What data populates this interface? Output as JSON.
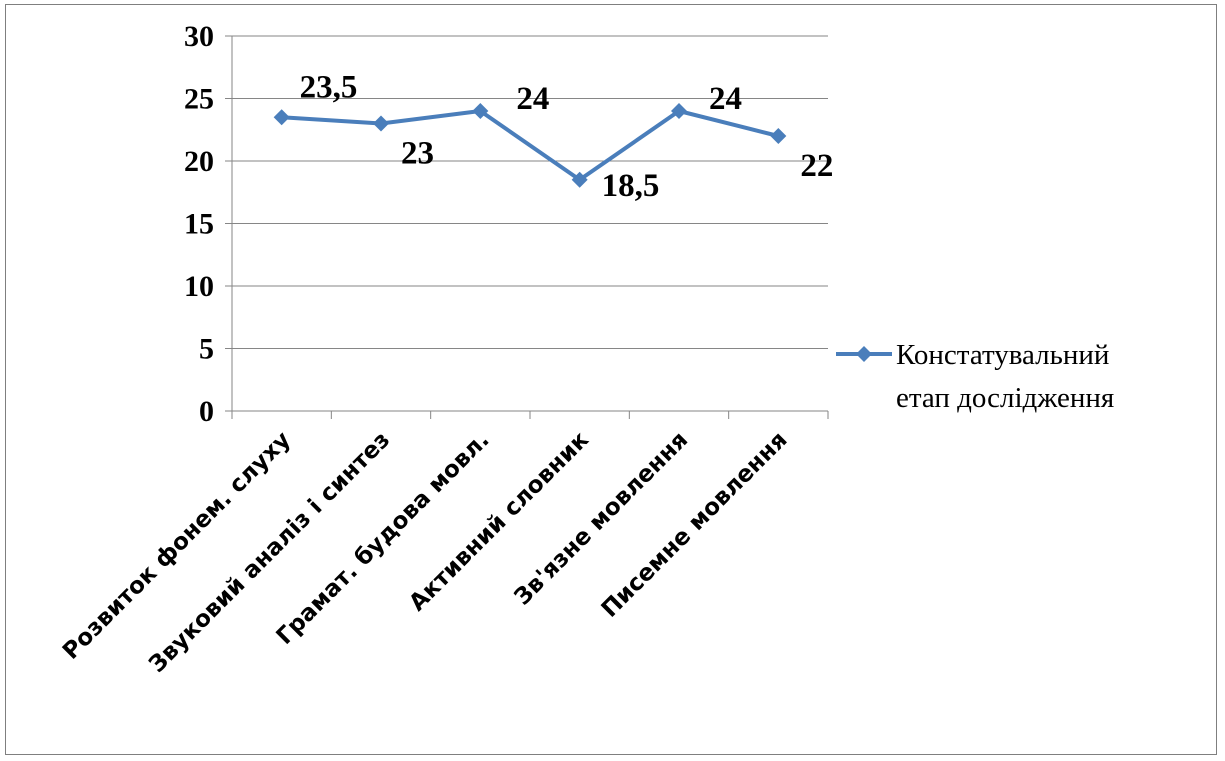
{
  "chart_data": {
    "type": "line",
    "categories": [
      "Розвиток фонем. слуху",
      "Звуковий аналіз і синтез",
      "Грамат. будова мовл.",
      "Активний словник",
      "Зв'язне мовлення",
      "Писемне мовлення"
    ],
    "series": [
      {
        "name": "Констатувальний етап дослідження",
        "name_lines": [
          "Констатувальний",
          "етап дослідження"
        ],
        "values": [
          23.5,
          23,
          24,
          18.5,
          24,
          22
        ],
        "data_labels": [
          "23,5",
          "23",
          "24",
          "18,5",
          "24",
          "22"
        ],
        "color": "#4a7ebb"
      }
    ],
    "yticks": [
      0,
      5,
      10,
      15,
      20,
      25,
      30
    ],
    "ytick_labels": [
      "0",
      "5",
      "10",
      "15",
      "20",
      "25",
      "30"
    ],
    "ylim": [
      0,
      30
    ],
    "grid": true,
    "legend_position": "right",
    "title": "",
    "xlabel": "",
    "ylabel": ""
  }
}
